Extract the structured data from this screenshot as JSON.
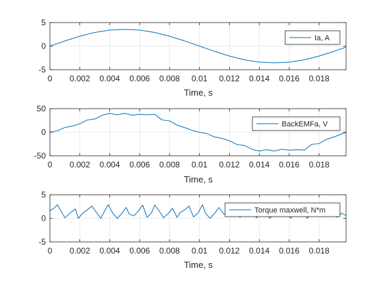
{
  "colors": {
    "line": "#0072bd",
    "axis": "#262626",
    "grid": "#e6e6e6",
    "legend_edge": "#262626",
    "background": "#ffffff"
  },
  "chart_data": [
    {
      "type": "line",
      "xlabel": "Time, s",
      "ylabel": "",
      "xlim": [
        0,
        0.0198
      ],
      "ylim": [
        -5,
        5
      ],
      "xticks": [
        "0",
        "0.002",
        "0.004",
        "0.006",
        "0.008",
        "0.01",
        "0.012",
        "0.014",
        "0.016",
        "0.018"
      ],
      "yticks": [
        "-5",
        "0",
        "5"
      ],
      "grid": true,
      "legend_location": "right",
      "series": [
        {
          "name": "Ia, A",
          "x": [
            0,
            0.001,
            0.002,
            0.003,
            0.004,
            0.005,
            0.006,
            0.007,
            0.008,
            0.009,
            0.01,
            0.011,
            0.012,
            0.013,
            0.014,
            0.015,
            0.016,
            0.017,
            0.018,
            0.019,
            0.0198
          ],
          "y": [
            0.0,
            1.1,
            2.1,
            2.9,
            3.4,
            3.55,
            3.4,
            2.9,
            2.1,
            1.1,
            0.0,
            -1.1,
            -2.1,
            -2.9,
            -3.4,
            -3.55,
            -3.4,
            -2.9,
            -2.1,
            -1.1,
            -0.2
          ]
        }
      ]
    },
    {
      "type": "line",
      "xlabel": "Time, s",
      "ylabel": "",
      "xlim": [
        0,
        0.0198
      ],
      "ylim": [
        -50,
        50
      ],
      "xticks": [
        "0",
        "0.002",
        "0.004",
        "0.006",
        "0.008",
        "0.01",
        "0.012",
        "0.014",
        "0.016",
        "0.018"
      ],
      "yticks": [
        "-50",
        "0",
        "50"
      ],
      "grid": true,
      "legend_location": "right",
      "series": [
        {
          "name": "BackEMFa, V",
          "x": [
            0,
            0.0005,
            0.001,
            0.0015,
            0.002,
            0.0025,
            0.003,
            0.0035,
            0.004,
            0.0045,
            0.005,
            0.0055,
            0.006,
            0.0065,
            0.007,
            0.0075,
            0.008,
            0.0085,
            0.009,
            0.0095,
            0.01,
            0.0105,
            0.011,
            0.0115,
            0.012,
            0.0125,
            0.013,
            0.0135,
            0.014,
            0.0145,
            0.015,
            0.0155,
            0.016,
            0.0165,
            0.017,
            0.0175,
            0.018,
            0.0185,
            0.019,
            0.0198
          ],
          "y": [
            0,
            3,
            10,
            13,
            18,
            26,
            28,
            36,
            40,
            37,
            40,
            36,
            38,
            37,
            38,
            26,
            24,
            15,
            10,
            4,
            0,
            -3,
            -10,
            -13,
            -18,
            -26,
            -28,
            -36,
            -40,
            -37,
            -40,
            -36,
            -38,
            -37,
            -38,
            -26,
            -24,
            -15,
            -10,
            0
          ]
        }
      ]
    },
    {
      "type": "line",
      "xlabel": "Time, s",
      "ylabel": "",
      "xlim": [
        0,
        0.0198
      ],
      "ylim": [
        -5,
        5
      ],
      "xticks": [
        "0",
        "0.002",
        "0.004",
        "0.006",
        "0.008",
        "0.01",
        "0.012",
        "0.014",
        "0.016",
        "0.018"
      ],
      "yticks": [
        "-5",
        "0",
        "5"
      ],
      "grid": true,
      "legend_location": "right",
      "series": [
        {
          "name": "Torque maxwell, N*m",
          "x": [
            0,
            0.0003,
            0.0005,
            0.0007,
            0.001,
            0.0013,
            0.0017,
            0.0019,
            0.0022,
            0.0025,
            0.0028,
            0.0031,
            0.0034,
            0.0036,
            0.0039,
            0.0042,
            0.0045,
            0.0048,
            0.0051,
            0.0053,
            0.0056,
            0.0059,
            0.0062,
            0.0065,
            0.0068,
            0.007,
            0.0073,
            0.0076,
            0.0079,
            0.0082,
            0.0085,
            0.0087,
            0.009,
            0.0093,
            0.0096,
            0.0099,
            0.0102,
            0.0104,
            0.0107,
            0.011,
            0.0113,
            0.0116,
            0.0119,
            0.0121,
            0.0124,
            0.0127,
            0.013,
            0.0133,
            0.0136,
            0.0138,
            0.0141,
            0.0144,
            0.0147,
            0.015,
            0.0153,
            0.0155,
            0.0158,
            0.0161,
            0.0164,
            0.0167,
            0.017,
            0.0172,
            0.0175,
            0.0178,
            0.0181,
            0.0184,
            0.0187,
            0.0189,
            0.0192,
            0.0195,
            0.0198
          ],
          "y": [
            1.6,
            2.2,
            2.9,
            1.8,
            0.1,
            1.0,
            2.0,
            0.0,
            1.1,
            1.8,
            2.6,
            1.3,
            0.0,
            1.2,
            2.9,
            1.1,
            0.0,
            1.0,
            2.3,
            0.9,
            0.5,
            1.5,
            2.8,
            0.2,
            1.2,
            2.8,
            1.6,
            0.1,
            1.0,
            2.1,
            0.2,
            1.2,
            1.8,
            2.6,
            0.3,
            1.1,
            2.9,
            1.1,
            0.0,
            1.0,
            2.3,
            1.0,
            0.5,
            1.5,
            2.7,
            0.2,
            1.0,
            2.8,
            1.6,
            0.1,
            1.0,
            2.0,
            0.0,
            1.1,
            1.9,
            2.6,
            1.2,
            0.0,
            1.3,
            2.8,
            1.2,
            0.0,
            1.1,
            2.3,
            1.0,
            0.5,
            1.4,
            2.8,
            0.2,
            1.1,
            0.6
          ]
        }
      ]
    }
  ]
}
